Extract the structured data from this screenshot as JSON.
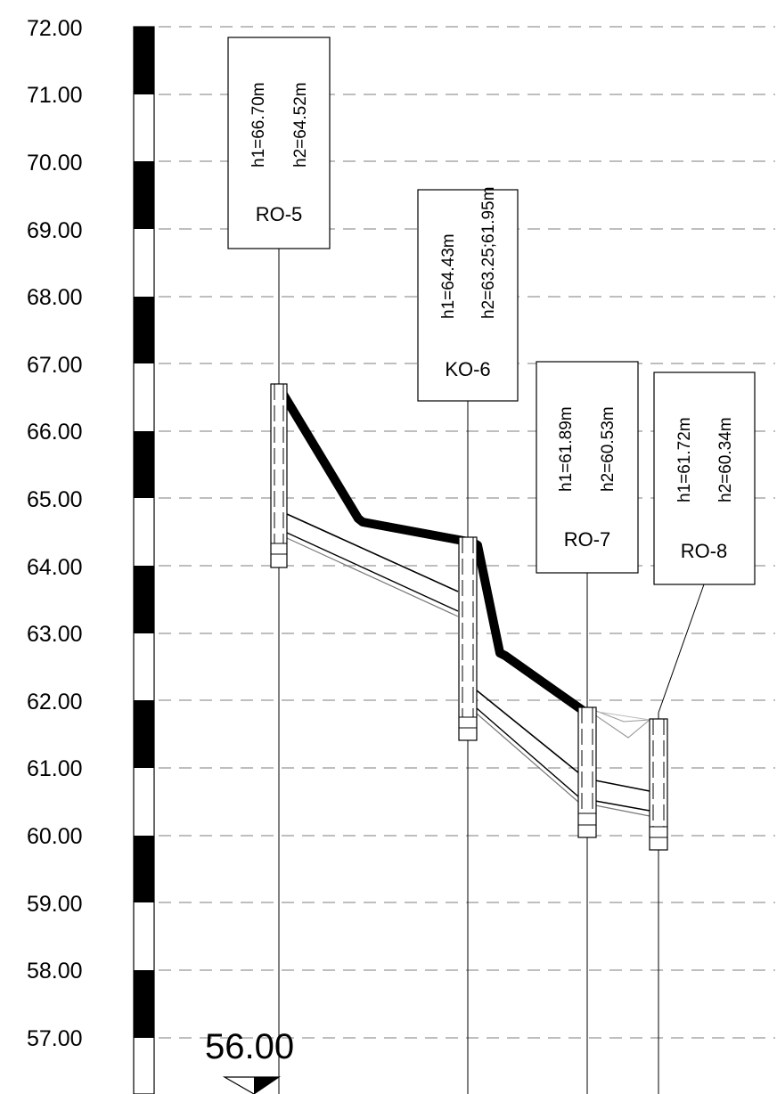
{
  "levels": [
    "72.00",
    "71.00",
    "70.00",
    "69.00",
    "68.00",
    "67.00",
    "66.00",
    "65.00",
    "64.00",
    "63.00",
    "62.00",
    "61.00",
    "60.00",
    "59.00",
    "58.00",
    "57.00"
  ],
  "datum": "56.00",
  "manholes": [
    {
      "name": "RO-5",
      "h1": "h1=66.70m",
      "h2": "h2=64.52m"
    },
    {
      "name": "KO-6",
      "h1": "h1=64.43m",
      "h2": "h2=63.25;61.95m"
    },
    {
      "name": "RO-7",
      "h1": "h1=61.89m",
      "h2": "h2=60.53m"
    },
    {
      "name": "RO-8",
      "h1": "h1=61.72m",
      "h2": "h2=60.34m"
    }
  ]
}
